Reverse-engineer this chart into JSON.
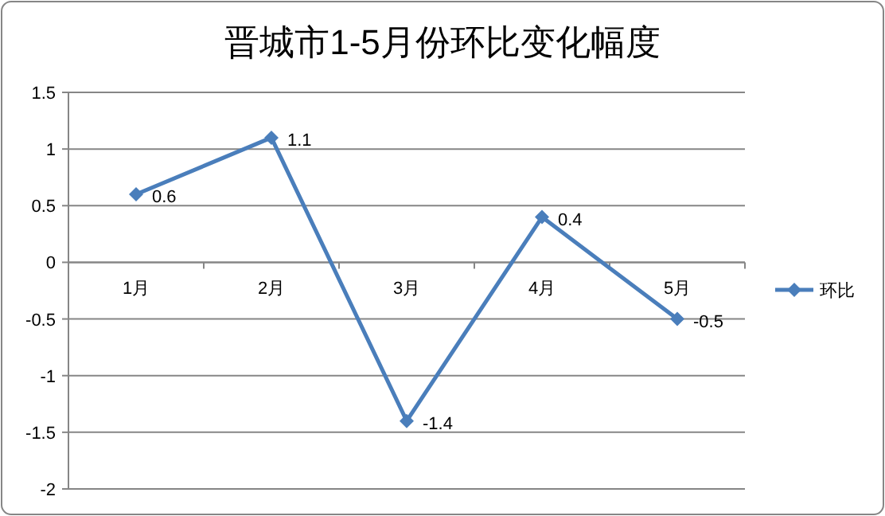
{
  "chart_data": {
    "type": "line",
    "title": "晋城市1-5月份环比变化幅度",
    "categories": [
      "1月",
      "2月",
      "3月",
      "4月",
      "5月"
    ],
    "series": [
      {
        "name": "环比",
        "color": "#4a7ebb",
        "values": [
          0.6,
          1.1,
          -1.4,
          0.4,
          -0.5
        ]
      }
    ],
    "ylim": [
      -2,
      1.5
    ],
    "yticks": [
      -2,
      -1.5,
      -1,
      -0.5,
      0,
      0.5,
      1,
      1.5
    ],
    "grid": "y",
    "legend": "right",
    "marker": "diamond",
    "data_labels": true
  }
}
